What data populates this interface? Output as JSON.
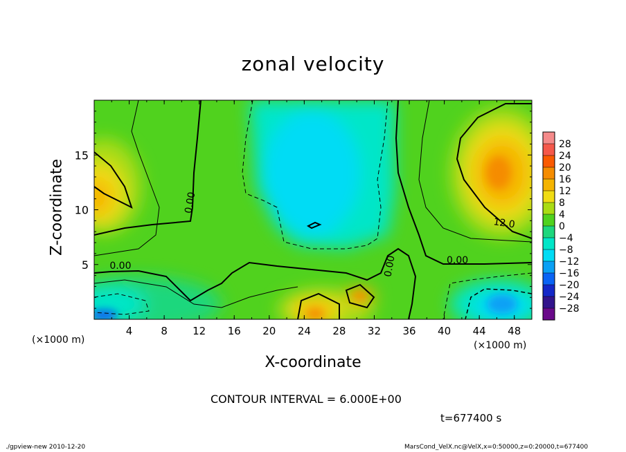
{
  "chart_data": {
    "type": "heatmap",
    "title": "zonal velocity",
    "xlabel": "X-coordinate",
    "ylabel": "Z-coordinate",
    "x_unit": "(×1000 m)",
    "xlim": [
      0,
      50
    ],
    "ylim": [
      0,
      20
    ],
    "x_ticks": [
      "4",
      "8",
      "12",
      "16",
      "20",
      "24",
      "28",
      "32",
      "36",
      "40",
      "44",
      "48"
    ],
    "y_ticks": [
      "5",
      "10",
      "15"
    ],
    "colorbar_ticks": [
      "28",
      "24",
      "20",
      "16",
      "12",
      "8",
      "4",
      "0",
      "−4",
      "−8",
      "−12",
      "−16",
      "−20",
      "−24",
      "−28"
    ],
    "colorbar_colors": [
      "#f58a8a",
      "#f5584a",
      "#fa5a00",
      "#f58c00",
      "#f5b400",
      "#f0dc14",
      "#aadc14",
      "#50d21e",
      "#1ed77d",
      "#00e6c8",
      "#00dcf5",
      "#0aa0f5",
      "#0a64f5",
      "#1428c8",
      "#32148c",
      "#6a0a8a"
    ],
    "contour_interval": "CONTOUR INTERVAL = 6.000E+00",
    "contour_labels": [
      "0.00",
      "0.00",
      "0.00",
      "0.00",
      "12.0"
    ],
    "grid": false,
    "legend": "right colorbar",
    "field_summary": [
      {
        "region": "upper left (x 0-6, z 9-15)",
        "value": 12
      },
      {
        "region": "upper right (x 42-50, z 9-18)",
        "value": 14
      },
      {
        "region": "center top (x 18-32, z 5-20)",
        "value": -10
      },
      {
        "region": "bottom center (x 21-28, z 0-3)",
        "value": 16
      },
      {
        "region": "bottom right (x 43-48, z 0-2)",
        "value": -16
      },
      {
        "region": "bottom left (x 0-3, z 0-1)",
        "value": -20
      }
    ]
  },
  "annotations": {
    "time": "t=677400 s",
    "footer_left": "./gpview-new   2010-12-20",
    "footer_right": "MarsCond_VelX.nc@VelX,x=0:50000,z=0:20000,t=677400"
  }
}
